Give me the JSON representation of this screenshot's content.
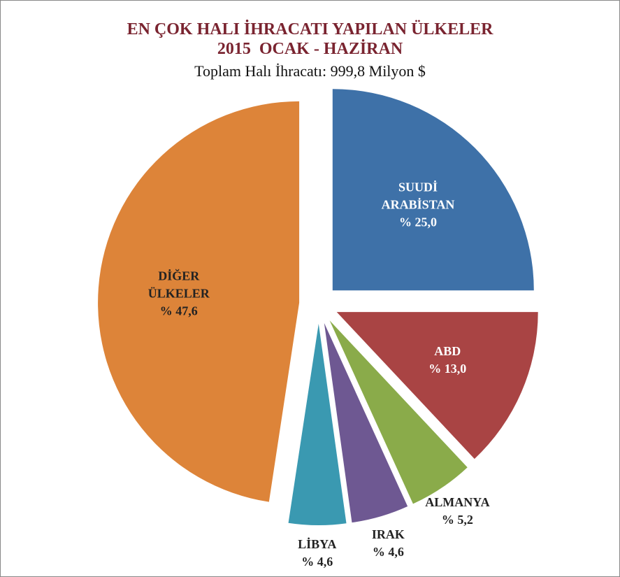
{
  "chart_data": {
    "type": "pie",
    "title": "EN ÇOK HALI İHRACATI YAPILAN ÜLKELER",
    "subtitle": "2015  OCAK - HAZİRAN",
    "annotation": "Toplam Halı İhracatı: 999,8 Milyon $",
    "categories": [
      "SUUDİ ARABİSTAN",
      "ABD",
      "ALMANYA",
      "IRAK",
      "LİBYA",
      "DİĞER ÜLKELER"
    ],
    "values": [
      25.0,
      13.0,
      5.2,
      4.6,
      4.6,
      47.6
    ],
    "value_labels": [
      "% 25,0",
      "% 13,0",
      "% 5,2",
      "% 4,6",
      "% 4,6",
      "% 47,6"
    ],
    "colors": [
      "#3e71a8",
      "#a94444",
      "#8aab4a",
      "#6e5892",
      "#3a99b1",
      "#dd8439"
    ],
    "label_colors": [
      "#ffffff",
      "#ffffff",
      "#222222",
      "#222222",
      "#222222",
      "#222222"
    ]
  }
}
